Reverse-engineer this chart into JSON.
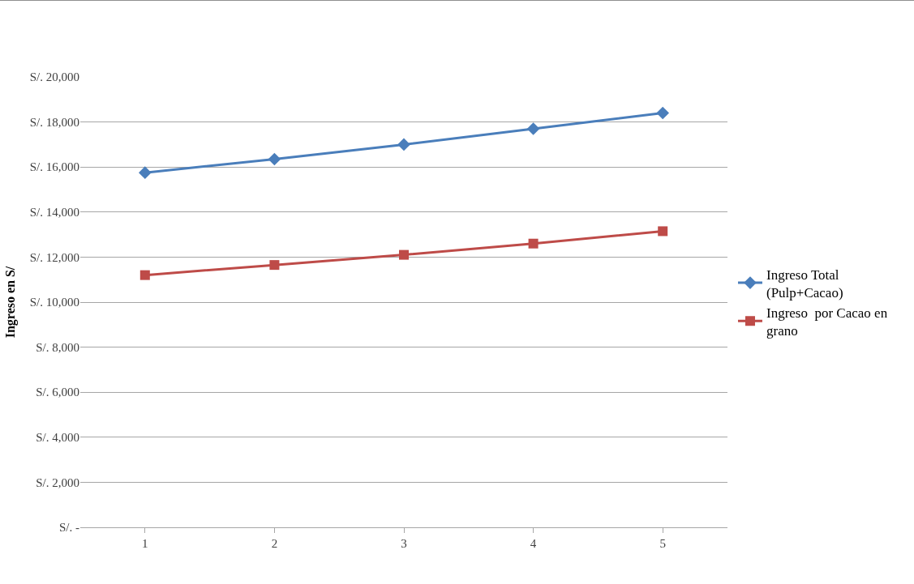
{
  "chart_data": {
    "type": "line",
    "ylabel": "Ingreso en S/",
    "categories": [
      "1",
      "2",
      "3",
      "4",
      "5"
    ],
    "series": [
      {
        "name": "Ingreso Total (Pulp+Cacao)",
        "color": "#4a7ebb",
        "marker": "diamond",
        "values": [
          15750,
          16350,
          17000,
          17700,
          18400
        ]
      },
      {
        "name": "Ingreso  por Cacao en grano",
        "color": "#be4b48",
        "marker": "square",
        "values": [
          11200,
          11650,
          12100,
          12600,
          13150
        ]
      }
    ],
    "ylim": [
      0,
      20000
    ],
    "yticks": [
      {
        "value": 0,
        "label": "S/. -"
      },
      {
        "value": 2000,
        "label": "S/. 2,000"
      },
      {
        "value": 4000,
        "label": "S/. 4,000"
      },
      {
        "value": 6000,
        "label": "S/. 6,000"
      },
      {
        "value": 8000,
        "label": "S/. 8,000"
      },
      {
        "value": 10000,
        "label": "S/. 10,000"
      },
      {
        "value": 12000,
        "label": "S/. 12,000"
      },
      {
        "value": 14000,
        "label": "S/. 14,000"
      },
      {
        "value": 16000,
        "label": "S/. 16,000"
      },
      {
        "value": 18000,
        "label": "S/. 18,000"
      },
      {
        "value": 20000,
        "label": "S/. 20,000"
      }
    ],
    "grid": "y",
    "legend": "right",
    "line_style": "solid"
  }
}
